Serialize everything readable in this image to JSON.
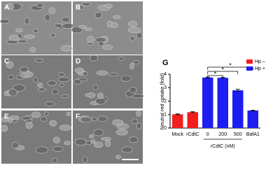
{
  "panels": [
    "A",
    "B",
    "C",
    "D",
    "E",
    "F"
  ],
  "chart_data": {
    "type": "bar",
    "panel_label": "G",
    "y_label": "Neutral red uptake (fold)",
    "categories": [
      "Mock",
      "rCdtC",
      "0",
      "200",
      "500",
      "BafA1"
    ],
    "group_label": "rCdtC (nM)",
    "series": [
      {
        "name": "Hp –",
        "color": "#f21d1d",
        "values": [
          1.02,
          1.18,
          null,
          null,
          null,
          null
        ],
        "errors": [
          0.03,
          0.03,
          null,
          null,
          null,
          null
        ]
      },
      {
        "name": "Hp +",
        "color": "#1d1df2",
        "values": [
          null,
          null,
          3.75,
          3.73,
          2.8,
          1.3
        ],
        "errors": [
          null,
          null,
          0.04,
          0.03,
          0.08,
          0.03
        ]
      }
    ],
    "ylim": [
      0,
      4
    ],
    "yticks": [
      0,
      1,
      2,
      3,
      4
    ],
    "annotations": [
      "*",
      "*",
      "*"
    ],
    "legend": "top-right"
  }
}
